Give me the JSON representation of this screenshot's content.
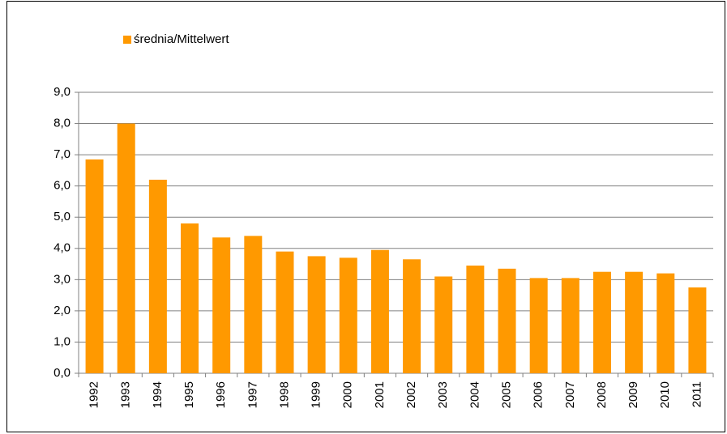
{
  "chart_data": {
    "type": "bar",
    "categories": [
      "1992",
      "1993",
      "1994",
      "1995",
      "1996",
      "1997",
      "1998",
      "1999",
      "2000",
      "2001",
      "2002",
      "2003",
      "2004",
      "2005",
      "2006",
      "2007",
      "2008",
      "2009",
      "2010",
      "2011"
    ],
    "series": [
      {
        "name": "średnia/Mittelwert",
        "color": "#ff9900",
        "values": [
          6.85,
          8.0,
          6.2,
          4.8,
          4.35,
          4.4,
          3.9,
          3.75,
          3.7,
          3.95,
          3.65,
          3.1,
          3.45,
          3.35,
          3.05,
          3.05,
          3.25,
          3.25,
          3.2,
          2.75
        ]
      }
    ],
    "ylim": [
      0,
      9
    ],
    "yticks": [
      {
        "value": 0,
        "label": "0,0"
      },
      {
        "value": 1,
        "label": "1,0"
      },
      {
        "value": 2,
        "label": "2,0"
      },
      {
        "value": 3,
        "label": "3,0"
      },
      {
        "value": 4,
        "label": "4,0"
      },
      {
        "value": 5,
        "label": "5,0"
      },
      {
        "value": 6,
        "label": "6,0"
      },
      {
        "value": 7,
        "label": "7,0"
      },
      {
        "value": 8,
        "label": "8,0"
      },
      {
        "value": 9,
        "label": "9,0"
      }
    ],
    "grid": true,
    "legend": "top-left"
  }
}
